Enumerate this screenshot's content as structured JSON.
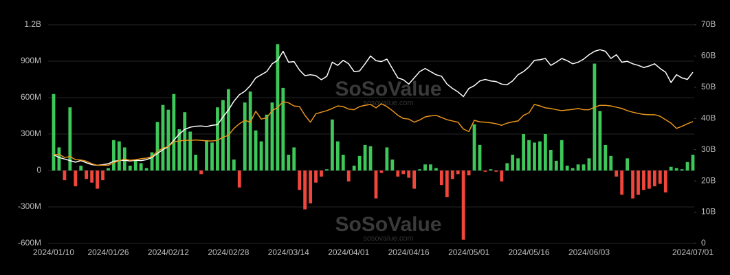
{
  "chart_data": {
    "type": "bar_line",
    "watermark": "SoSoValue",
    "watermark_url": "sosovalue.com",
    "categories": [
      "2024/01/10",
      null,
      null,
      null,
      null,
      null,
      null,
      null,
      null,
      null,
      "2024/01/26",
      null,
      null,
      null,
      null,
      null,
      null,
      null,
      null,
      null,
      null,
      "2024/02/12",
      null,
      null,
      null,
      null,
      null,
      null,
      null,
      null,
      null,
      null,
      "2024/02/28",
      null,
      null,
      null,
      null,
      null,
      null,
      null,
      null,
      null,
      null,
      "2024/03/14",
      null,
      null,
      null,
      null,
      null,
      null,
      null,
      null,
      null,
      null,
      "2024/04/01",
      null,
      null,
      null,
      null,
      null,
      null,
      null,
      null,
      null,
      null,
      "2024/04/16",
      null,
      null,
      null,
      null,
      null,
      null,
      null,
      null,
      null,
      null,
      "2024/05/01",
      null,
      null,
      null,
      null,
      null,
      null,
      null,
      null,
      null,
      null,
      "2024/05/16",
      null,
      null,
      null,
      null,
      null,
      null,
      null,
      null,
      null,
      null,
      "2024/06/03",
      null,
      null,
      null,
      null,
      null,
      null,
      null,
      null,
      null,
      null,
      null,
      null,
      null,
      null,
      null,
      null,
      null,
      null,
      "2024/07/01"
    ],
    "series": [
      {
        "type": "bar",
        "positive_color": "#3ec85a",
        "negative_color": "#f0463c",
        "values": [
          630,
          190,
          -80,
          520,
          -130,
          40,
          -70,
          -100,
          -150,
          -80,
          20,
          250,
          240,
          190,
          40,
          80,
          60,
          20,
          150,
          400,
          540,
          500,
          630,
          340,
          480,
          320,
          130,
          -30,
          250,
          230,
          520,
          580,
          670,
          90,
          -140,
          560,
          650,
          330,
          240,
          460,
          560,
          1040,
          680,
          130,
          190,
          -160,
          -320,
          -270,
          -100,
          -50,
          10,
          420,
          240,
          130,
          -90,
          40,
          120,
          210,
          200,
          -230,
          -20,
          190,
          90,
          -50,
          -30,
          -60,
          -150,
          10,
          50,
          50,
          20,
          -120,
          -220,
          -70,
          -30,
          -570,
          -40,
          380,
          210,
          -10,
          10,
          -10,
          -90,
          60,
          130,
          100,
          300,
          250,
          230,
          240,
          300,
          170,
          80,
          250,
          40,
          20,
          50,
          50,
          100,
          880,
          490,
          210,
          120,
          -50,
          -200,
          100,
          -230,
          -200,
          -160,
          -150,
          -130,
          -110,
          -180,
          30,
          20,
          10,
          70,
          130
        ]
      },
      {
        "type": "line",
        "axis": "y2",
        "color": "#ffffff",
        "values": [
          28.4,
          27.5,
          27,
          26.5,
          26,
          26.5,
          25.8,
          25.2,
          25,
          25.2,
          25.5,
          26.3,
          26.5,
          26.6,
          26.4,
          26.6,
          26.5,
          26.8,
          27.5,
          28.8,
          30,
          31,
          33,
          35,
          36.5,
          37.2,
          37.5,
          37.6,
          37.4,
          37.8,
          38,
          40.5,
          42.7,
          45.5,
          47.6,
          48.7,
          50.5,
          53,
          54,
          55,
          57.5,
          58.6,
          61.5,
          58,
          58.2,
          55.5,
          53.7,
          54,
          53.7,
          52.4,
          53.5,
          58,
          57,
          58.6,
          57.5,
          55,
          55.2,
          57.5,
          60,
          58.5,
          58.2,
          59,
          56,
          53,
          52.4,
          51,
          53,
          55,
          56,
          55,
          54,
          53.5,
          51,
          49.6,
          48.5,
          47,
          49.6,
          50.5,
          52,
          52.5,
          52,
          51.8,
          51,
          50.8,
          52,
          54,
          55,
          56.5,
          58.6,
          58.8,
          59.2,
          57,
          58,
          59.2,
          58.5,
          57.5,
          58,
          59,
          60.4,
          61.5,
          62,
          61.5,
          59.2,
          60.4,
          58,
          58.3,
          57.5,
          57,
          56.3,
          56.8,
          57.5,
          56,
          54.8,
          51.5,
          54,
          53,
          52.5,
          54.8
        ]
      },
      {
        "type": "line",
        "axis": "y2",
        "color": "#e8941c",
        "values": [
          28.4,
          28.5,
          27.5,
          27.8,
          26.8,
          26.7,
          26.3,
          25.5,
          25,
          25,
          25,
          25.8,
          26.5,
          27,
          26.6,
          26.8,
          27.1,
          27.3,
          27.8,
          29.5,
          30.5,
          31,
          32.5,
          32.8,
          33,
          33,
          33.1,
          33,
          32.8,
          32.8,
          33,
          34,
          34.6,
          36.8,
          38.3,
          39.4,
          38.8,
          42.3,
          39.8,
          40.2,
          42.5,
          43.5,
          45.4,
          45,
          44,
          43.8,
          41,
          38.8,
          41.5,
          42,
          42.5,
          43.2,
          44,
          43.8,
          43,
          42.8,
          43.8,
          44.2,
          44.5,
          43.4,
          44.7,
          43.8,
          42.5,
          41,
          40,
          39.8,
          38.8,
          39.5,
          40.5,
          40.8,
          41,
          40.3,
          39.6,
          39.2,
          38.8,
          36.6,
          35.8,
          39.4,
          38.9,
          38.8,
          38.6,
          38.3,
          37.8,
          38.5,
          38.9,
          39.2,
          41,
          41.8,
          44.5,
          44,
          43.4,
          43.2,
          42.8,
          42.5,
          42.7,
          42.9,
          43.2,
          42.8,
          42.8,
          43.6,
          44.2,
          44.2,
          44,
          43.6,
          43.2,
          42.5,
          42,
          41.6,
          41.3,
          41.2,
          41.2,
          40.7,
          39.6,
          38.5,
          36.8,
          37.5,
          38.3,
          39
        ]
      }
    ],
    "ylim": [
      -600,
      1200
    ],
    "yticks": [
      {
        "value": -600,
        "label": "-600M"
      },
      {
        "value": -300,
        "label": "-300M"
      },
      0,
      {
        "value": 300,
        "label": "300M"
      },
      {
        "value": 600,
        "label": "600M"
      },
      {
        "value": 900,
        "label": "900M"
      },
      {
        "value": 1200,
        "label": "1.2B"
      }
    ],
    "y2lim": [
      0,
      70
    ],
    "y2ticks": [
      0,
      {
        "value": 10,
        "label": "10B"
      },
      {
        "value": 20,
        "label": "20B"
      },
      {
        "value": 30,
        "label": "30B"
      },
      {
        "value": 40,
        "label": "40B"
      },
      {
        "value": 50,
        "label": "50B"
      },
      {
        "value": 60,
        "label": "60B"
      },
      {
        "value": 70,
        "label": "70B"
      }
    ],
    "grid": true
  }
}
